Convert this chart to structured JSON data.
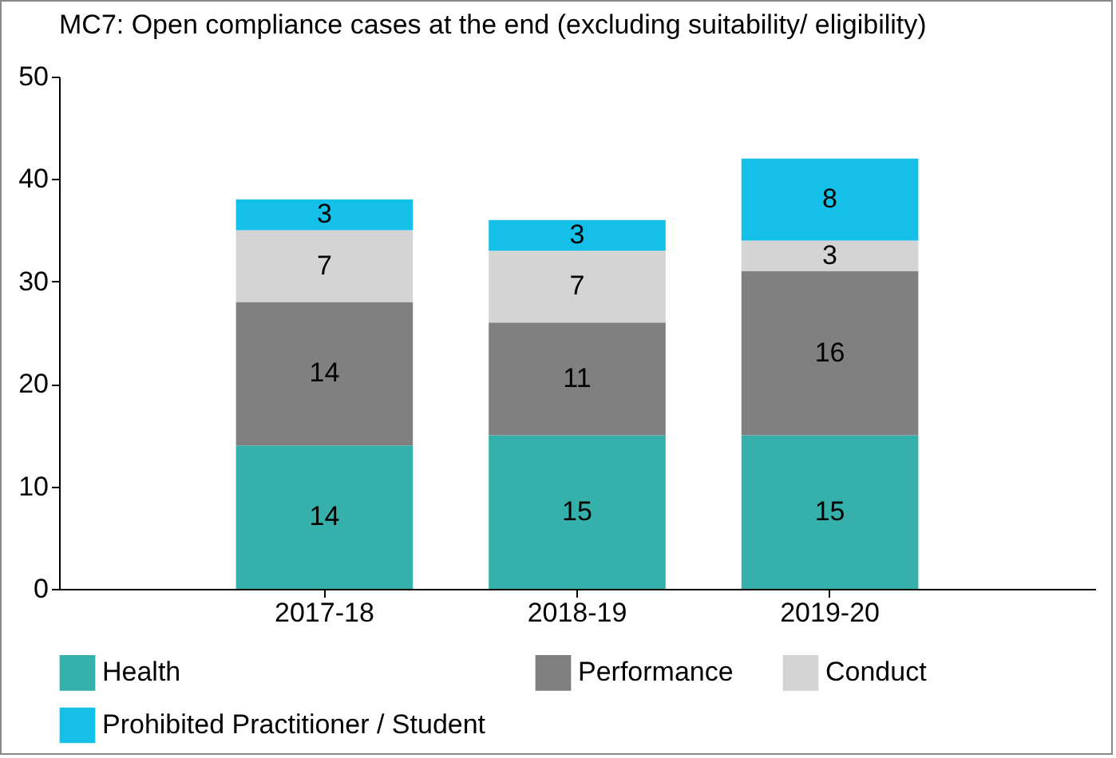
{
  "chart_data": {
    "type": "bar",
    "title": "MC7: Open compliance cases at the end (excluding suitability/ eligibility)",
    "categories": [
      "2017-18",
      "2018-19",
      "2019-20"
    ],
    "stacked": true,
    "data_labels": true,
    "legend": "bottom",
    "grid": false,
    "ylim": [
      0,
      50
    ],
    "yticks": [
      0,
      10,
      20,
      30,
      40,
      50
    ],
    "series": [
      {
        "name": "Health",
        "color": "#35b0aa",
        "values": [
          14,
          15,
          15
        ]
      },
      {
        "name": "Performance",
        "color": "#808080",
        "values": [
          14,
          11,
          16
        ]
      },
      {
        "name": "Conduct",
        "color": "#d4d4d4",
        "values": [
          7,
          7,
          3
        ]
      },
      {
        "name": "Prohibited Practitioner / Student",
        "color": "#14bfe8",
        "values": [
          3,
          3,
          8
        ]
      }
    ]
  }
}
